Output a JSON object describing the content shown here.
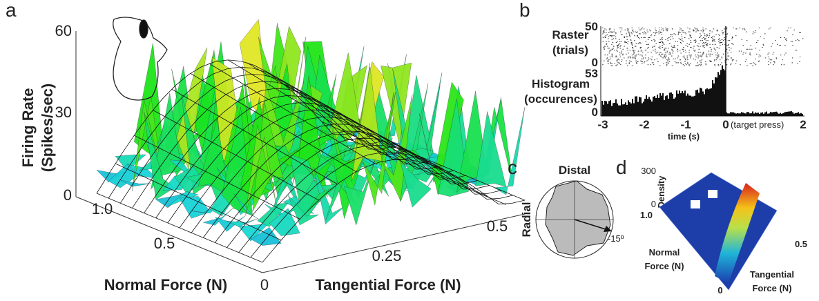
{
  "panels": [
    {
      "label": "a",
      "z_label_lines": [
        "Firing Rate",
        "(Spikes/sec)"
      ],
      "z_ticks": [
        "0",
        "30",
        "60"
      ],
      "normal_ticks": [
        "1.0",
        "0.5"
      ],
      "tangential_ticks": [
        "0",
        "0.25",
        "0.5"
      ],
      "normal_label": "Normal Force (N)",
      "tangential_label": "Tangential Force (N)"
    },
    {
      "label": "b",
      "raster_label_lines": [
        "Raster",
        "(trials)"
      ],
      "raster_ticks": [
        "50",
        "0"
      ],
      "histogram_label_lines": [
        "Histogram",
        "(occurences)"
      ],
      "histogram_ticks": [
        "53",
        "0"
      ],
      "time_ticks": [
        "-3",
        "-2",
        "-1",
        "0",
        "2"
      ],
      "event_annotation": "(target press)",
      "time_label": "time (s)"
    },
    {
      "label": "c",
      "top_label": "Distal",
      "left_label": "Radial",
      "angle_annotation": "-15º"
    },
    {
      "label": "d",
      "z_label": "Density",
      "z_ticks": [
        "300",
        "0"
      ],
      "normal_tick": "1.0",
      "tangential_tick": "0.5",
      "origin_tick": "0",
      "normal_label_lines": [
        "Normal",
        "Force (N)"
      ],
      "tangential_label_lines": [
        "Tangential",
        "Force (N)"
      ]
    }
  ]
}
